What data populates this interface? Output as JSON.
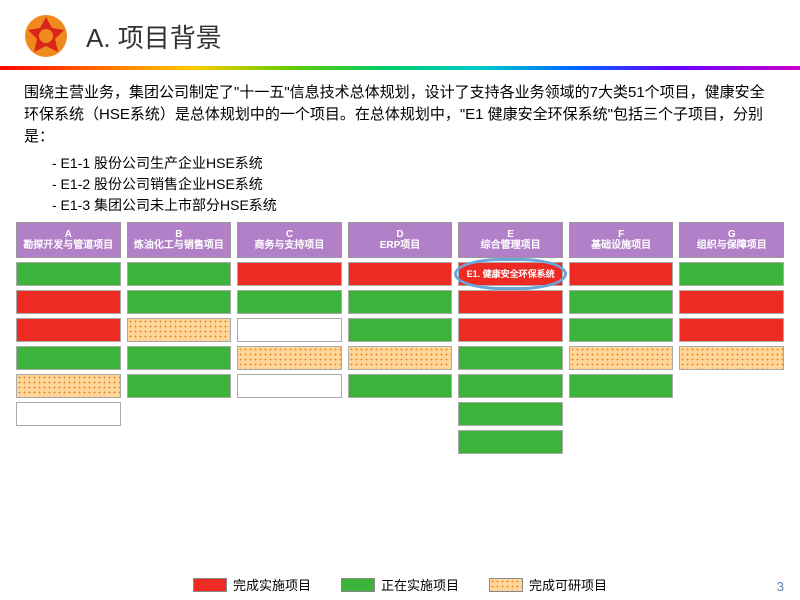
{
  "header": {
    "title": "A. 项目背景"
  },
  "intro": "围绕主营业务，集团公司制定了\"十一五\"信息技术总体规划，设计了支持各业务领域的7大类51个项目，健康安全环保系统（HSE系统）是总体规划中的一个项目。在总体规划中，\"E1 健康安全环保系统\"包括三个子项目，分别是：",
  "bullets": [
    "- E1-1 股份公司生产企业HSE系统",
    "- E1-2 股份公司销售企业HSE系统",
    "- E1-3 集团公司未上市部分HSE系统"
  ],
  "columns": [
    {
      "letter": "A",
      "name": "勘探开发与管道项目",
      "cells": [
        "green",
        "red",
        "red",
        "green",
        "orange",
        "white",
        "none"
      ]
    },
    {
      "letter": "B",
      "name": "炼油化工与销售项目",
      "cells": [
        "green",
        "green",
        "orange",
        "green",
        "green",
        "none",
        "none"
      ]
    },
    {
      "letter": "C",
      "name": "商务与支持项目",
      "cells": [
        "red",
        "green",
        "white",
        "orange",
        "white",
        "none",
        "none"
      ]
    },
    {
      "letter": "D",
      "name": "ERP项目",
      "cells": [
        "red",
        "green",
        "green",
        "orange",
        "green",
        "none",
        "none"
      ]
    },
    {
      "letter": "E",
      "name": "综合管理项目",
      "cells": [
        "highlight",
        "red",
        "red",
        "green",
        "green",
        "green",
        "green"
      ]
    },
    {
      "letter": "F",
      "name": "基础设施项目",
      "cells": [
        "red",
        "green",
        "green",
        "orange",
        "green",
        "none",
        "none"
      ]
    },
    {
      "letter": "G",
      "name": "组织与保障项目",
      "cells": [
        "green",
        "red",
        "red",
        "orange",
        "none",
        "none",
        "none"
      ]
    }
  ],
  "highlight_label": "E1. 健康安全环保系统",
  "legend": [
    {
      "label": "完成实施项目",
      "class": "c-red"
    },
    {
      "label": "正在实施项目",
      "class": "c-green"
    },
    {
      "label": "完成可研项目",
      "class": "c-orange"
    }
  ],
  "page": "3",
  "colors": {
    "header_purple": "#b180c8",
    "red": "#ee2a24",
    "green": "#3cb43c",
    "orange": "#ffd79b",
    "logo_orange": "#f08a1d",
    "logo_red": "#d9261c"
  }
}
